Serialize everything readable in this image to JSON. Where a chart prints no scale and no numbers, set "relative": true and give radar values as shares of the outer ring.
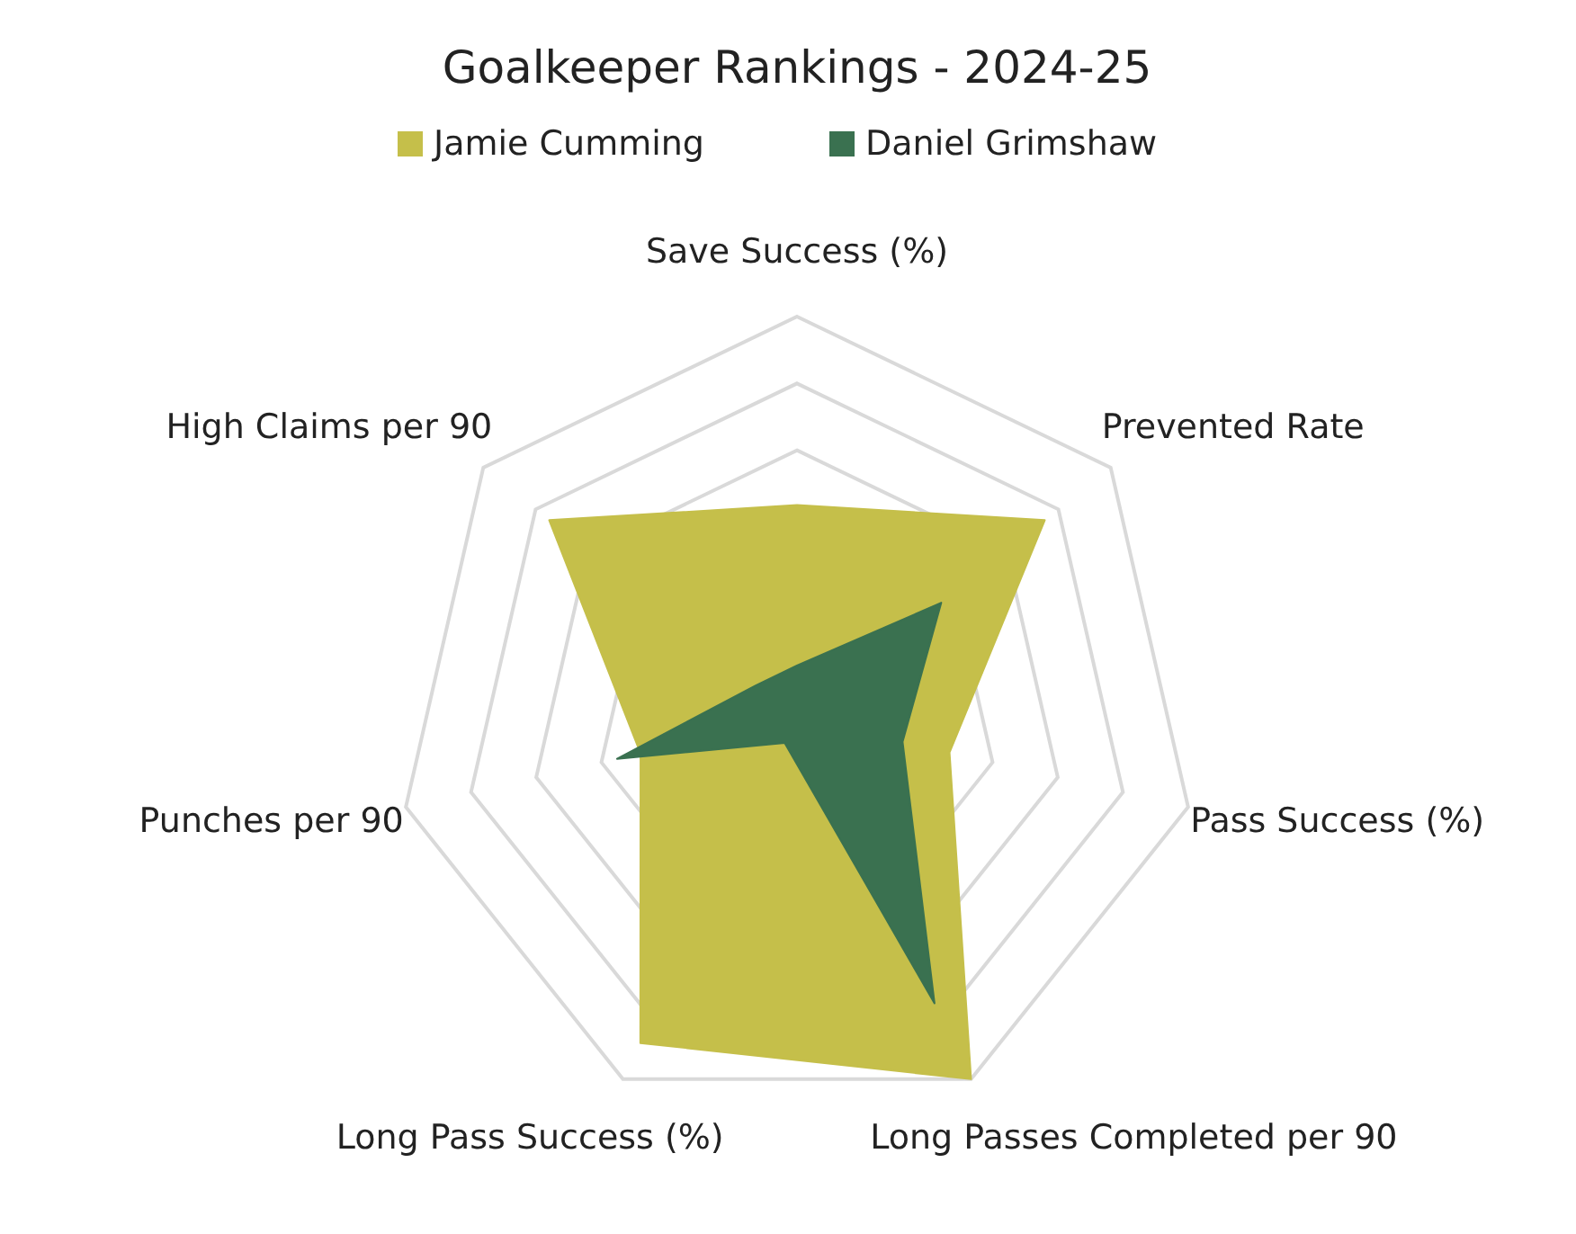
{
  "chart_data": {
    "type": "radar",
    "title": "Goalkeeper Rankings - 2024-25",
    "relative": true,
    "grid": true,
    "legend": "top",
    "categories": [
      "Save Success (%)",
      "Prevented Rate",
      "Pass Success (%)",
      "Long Passes Completed per 90",
      "Long Pass Success (%)",
      "Punches per 90",
      "High Claims per 90"
    ],
    "series": [
      {
        "name": "Jamie Cumming",
        "color": "#c5bf4a",
        "values": [
          0.53,
          0.79,
          0.39,
          1.0,
          0.9,
          0.4,
          0.79
        ]
      },
      {
        "name": "Daniel Grimshaw",
        "color": "#3a7150",
        "values": [
          0.13,
          0.46,
          0.27,
          0.79,
          0.07,
          0.46,
          0.13
        ]
      }
    ]
  }
}
